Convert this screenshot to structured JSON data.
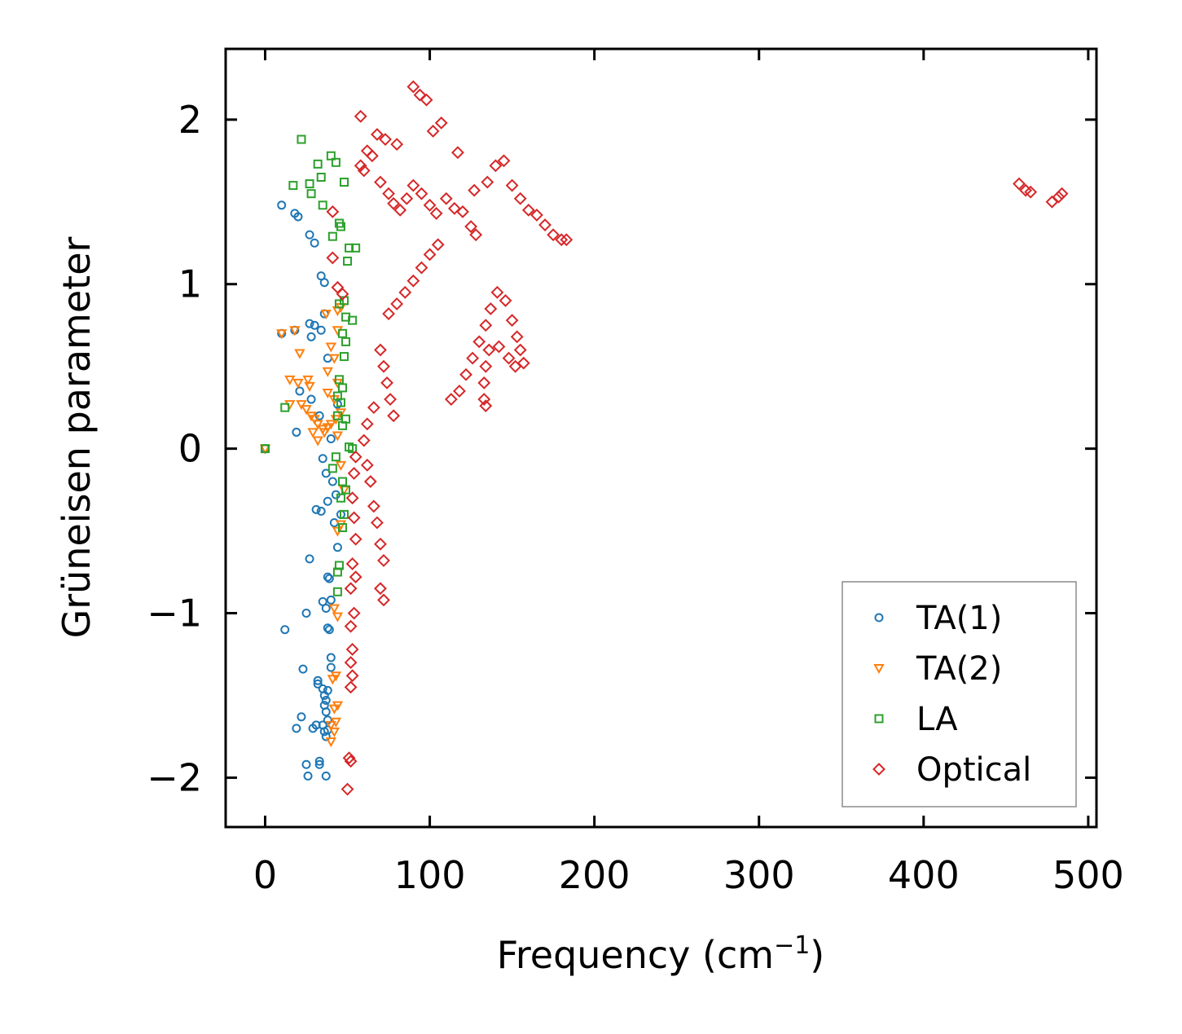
{
  "chart_data": {
    "type": "scatter",
    "title": "",
    "xlabel": "Frequency (cm",
    "xlabel_sup": "−1",
    "xlabel_close": ")",
    "ylabel": "Grüneisen parameter",
    "xlim": [
      -24,
      505
    ],
    "ylim": [
      -2.3,
      2.43
    ],
    "x_ticks": [
      0,
      100,
      200,
      300,
      400,
      500
    ],
    "x_tick_labels": [
      "0",
      "100",
      "200",
      "300",
      "400",
      "500"
    ],
    "y_ticks": [
      -2,
      -1,
      0,
      1,
      2
    ],
    "y_tick_labels": [
      "−2",
      "−1",
      "0",
      "1",
      "2"
    ],
    "grid": false,
    "legend_position": "bottom-right",
    "series": [
      {
        "name": "TA(1)",
        "marker": "circle",
        "color": "#1f77b4",
        "points": [
          [
            0,
            0
          ],
          [
            10,
            1.48
          ],
          [
            18,
            1.43
          ],
          [
            20,
            1.41
          ],
          [
            27,
            1.3
          ],
          [
            30,
            1.25
          ],
          [
            34,
            1.05
          ],
          [
            36,
            1.01
          ],
          [
            10,
            0.7
          ],
          [
            18,
            0.72
          ],
          [
            27,
            0.76
          ],
          [
            30,
            0.75
          ],
          [
            34,
            0.72
          ],
          [
            36,
            0.82
          ],
          [
            38,
            0.55
          ],
          [
            28,
            0.68
          ],
          [
            21,
            0.35
          ],
          [
            19,
            0.1
          ],
          [
            28,
            0.3
          ],
          [
            33,
            0.2
          ],
          [
            40,
            0.06
          ],
          [
            44,
            0.27
          ],
          [
            35,
            -0.06
          ],
          [
            37,
            -0.15
          ],
          [
            41,
            -0.2
          ],
          [
            43,
            -0.28
          ],
          [
            38,
            -0.32
          ],
          [
            31,
            -0.37
          ],
          [
            34,
            -0.38
          ],
          [
            42,
            -0.45
          ],
          [
            46,
            -0.4
          ],
          [
            27,
            -0.67
          ],
          [
            38,
            -0.78
          ],
          [
            39,
            -0.79
          ],
          [
            44,
            -0.6
          ],
          [
            25,
            -1.0
          ],
          [
            35,
            -0.93
          ],
          [
            37,
            -0.97
          ],
          [
            40,
            -0.92
          ],
          [
            12,
            -1.1
          ],
          [
            38,
            -1.09
          ],
          [
            39,
            -1.1
          ],
          [
            40,
            -1.27
          ],
          [
            40,
            -1.33
          ],
          [
            23,
            -1.34
          ],
          [
            32,
            -1.41
          ],
          [
            32,
            -1.43
          ],
          [
            35,
            -1.46
          ],
          [
            36,
            -1.5
          ],
          [
            38,
            -1.47
          ],
          [
            37,
            -1.53
          ],
          [
            36,
            -1.56
          ],
          [
            37,
            -1.6
          ],
          [
            38,
            -1.65
          ],
          [
            22,
            -1.63
          ],
          [
            19,
            -1.7
          ],
          [
            29,
            -1.7
          ],
          [
            31,
            -1.68
          ],
          [
            35,
            -1.68
          ],
          [
            36,
            -1.72
          ],
          [
            37,
            -1.75
          ],
          [
            38,
            -1.71
          ],
          [
            33,
            -1.9
          ],
          [
            33,
            -1.92
          ],
          [
            25,
            -1.92
          ],
          [
            26,
            -1.99
          ],
          [
            37,
            -1.99
          ]
        ]
      },
      {
        "name": "TA(2)",
        "marker": "triangle-down",
        "color": "#ff7f0e",
        "points": [
          [
            0,
            0
          ],
          [
            10,
            0.7
          ],
          [
            18,
            0.72
          ],
          [
            37,
            0.82
          ],
          [
            44,
            0.84
          ],
          [
            46,
            0.86
          ],
          [
            44,
            0.72
          ],
          [
            40,
            0.62
          ],
          [
            42,
            0.55
          ],
          [
            21,
            0.58
          ],
          [
            38,
            0.47
          ],
          [
            44,
            0.4
          ],
          [
            15,
            0.42
          ],
          [
            20,
            0.4
          ],
          [
            26,
            0.42
          ],
          [
            27,
            0.38
          ],
          [
            38,
            0.34
          ],
          [
            42,
            0.3
          ],
          [
            15,
            0.27
          ],
          [
            22,
            0.27
          ],
          [
            25,
            0.24
          ],
          [
            28,
            0.2
          ],
          [
            30,
            0.18
          ],
          [
            32,
            0.15
          ],
          [
            35,
            0.12
          ],
          [
            36,
            0.1
          ],
          [
            38,
            0.13
          ],
          [
            40,
            0.15
          ],
          [
            43,
            0.18
          ],
          [
            46,
            0.22
          ],
          [
            32,
            0.05
          ],
          [
            29,
            0.1
          ],
          [
            44,
            0.08
          ],
          [
            46,
            -0.1
          ],
          [
            48,
            -0.25
          ],
          [
            44,
            -0.5
          ],
          [
            46,
            -0.46
          ],
          [
            42,
            -0.97
          ],
          [
            44,
            -1.02
          ],
          [
            41,
            -1.4
          ],
          [
            43,
            -1.38
          ],
          [
            42,
            -1.58
          ],
          [
            44,
            -1.56
          ],
          [
            40,
            -1.68
          ],
          [
            42,
            -1.72
          ],
          [
            43,
            -1.66
          ],
          [
            40,
            -1.78
          ]
        ]
      },
      {
        "name": "LA",
        "marker": "square",
        "color": "#2ca02c",
        "points": [
          [
            0,
            0
          ],
          [
            22,
            1.88
          ],
          [
            17,
            1.6
          ],
          [
            27,
            1.61
          ],
          [
            32,
            1.73
          ],
          [
            40,
            1.78
          ],
          [
            43,
            1.74
          ],
          [
            34,
            1.65
          ],
          [
            28,
            1.55
          ],
          [
            35,
            1.48
          ],
          [
            48,
            1.62
          ],
          [
            45,
            1.37
          ],
          [
            46,
            1.35
          ],
          [
            41,
            1.29
          ],
          [
            51,
            1.22
          ],
          [
            55,
            1.22
          ],
          [
            50,
            1.14
          ],
          [
            45,
            0.88
          ],
          [
            48,
            0.9
          ],
          [
            49,
            0.8
          ],
          [
            53,
            0.78
          ],
          [
            47,
            0.7
          ],
          [
            49,
            0.65
          ],
          [
            48,
            0.56
          ],
          [
            45,
            0.42
          ],
          [
            47,
            0.37
          ],
          [
            44,
            0.32
          ],
          [
            46,
            0.28
          ],
          [
            12,
            0.25
          ],
          [
            44,
            0.2
          ],
          [
            49,
            0.18
          ],
          [
            47,
            0.14
          ],
          [
            51,
            0.01
          ],
          [
            53,
            0.0
          ],
          [
            43,
            -0.05
          ],
          [
            41,
            -0.12
          ],
          [
            47,
            -0.2
          ],
          [
            49,
            -0.25
          ],
          [
            46,
            -0.3
          ],
          [
            48,
            -0.4
          ],
          [
            47,
            -0.48
          ],
          [
            45,
            -0.71
          ],
          [
            44,
            -0.75
          ],
          [
            44,
            -0.87
          ]
        ]
      },
      {
        "name": "Optical",
        "marker": "diamond",
        "color": "#d62728",
        "points": [
          [
            58,
            2.02
          ],
          [
            68,
            1.91
          ],
          [
            73,
            1.88
          ],
          [
            80,
            1.85
          ],
          [
            90,
            2.2
          ],
          [
            94,
            2.15
          ],
          [
            98,
            2.12
          ],
          [
            102,
            1.93
          ],
          [
            107,
            1.98
          ],
          [
            117,
            1.8
          ],
          [
            127,
            1.57
          ],
          [
            41,
            1.44
          ],
          [
            41,
            1.16
          ],
          [
            44,
            0.98
          ],
          [
            47,
            0.94
          ],
          [
            58,
            1.72
          ],
          [
            60,
            1.69
          ],
          [
            62,
            1.81
          ],
          [
            65,
            1.78
          ],
          [
            70,
            1.62
          ],
          [
            75,
            1.55
          ],
          [
            78,
            1.49
          ],
          [
            82,
            1.45
          ],
          [
            86,
            1.52
          ],
          [
            90,
            1.6
          ],
          [
            95,
            1.55
          ],
          [
            100,
            1.48
          ],
          [
            104,
            1.43
          ],
          [
            110,
            1.52
          ],
          [
            115,
            1.46
          ],
          [
            120,
            1.44
          ],
          [
            125,
            1.35
          ],
          [
            128,
            1.3
          ],
          [
            135,
            1.62
          ],
          [
            140,
            1.72
          ],
          [
            145,
            1.75
          ],
          [
            150,
            1.6
          ],
          [
            155,
            1.52
          ],
          [
            160,
            1.45
          ],
          [
            165,
            1.42
          ],
          [
            170,
            1.36
          ],
          [
            175,
            1.3
          ],
          [
            180,
            1.27
          ],
          [
            183,
            1.27
          ],
          [
            105,
            1.24
          ],
          [
            100,
            1.18
          ],
          [
            95,
            1.1
          ],
          [
            90,
            1.02
          ],
          [
            85,
            0.95
          ],
          [
            80,
            0.88
          ],
          [
            75,
            0.82
          ],
          [
            70,
            0.6
          ],
          [
            72,
            0.5
          ],
          [
            74,
            0.4
          ],
          [
            76,
            0.3
          ],
          [
            78,
            0.2
          ],
          [
            66,
            0.25
          ],
          [
            62,
            0.15
          ],
          [
            60,
            0.05
          ],
          [
            62,
            -0.1
          ],
          [
            64,
            -0.2
          ],
          [
            66,
            -0.35
          ],
          [
            68,
            -0.45
          ],
          [
            70,
            -0.58
          ],
          [
            72,
            -0.68
          ],
          [
            70,
            -0.85
          ],
          [
            72,
            -0.92
          ],
          [
            55,
            -0.05
          ],
          [
            54,
            -0.15
          ],
          [
            53,
            -0.3
          ],
          [
            54,
            -0.42
          ],
          [
            55,
            -0.55
          ],
          [
            53,
            -0.7
          ],
          [
            55,
            -0.78
          ],
          [
            52,
            -0.85
          ],
          [
            54,
            -1.0
          ],
          [
            52,
            -1.08
          ],
          [
            53,
            -1.22
          ],
          [
            52,
            -1.3
          ],
          [
            53,
            -1.38
          ],
          [
            52,
            -1.45
          ],
          [
            51,
            -1.88
          ],
          [
            52,
            -1.9
          ],
          [
            50,
            -2.07
          ],
          [
            113,
            0.3
          ],
          [
            118,
            0.35
          ],
          [
            122,
            0.45
          ],
          [
            126,
            0.55
          ],
          [
            130,
            0.65
          ],
          [
            134,
            0.75
          ],
          [
            137,
            0.85
          ],
          [
            141,
            0.95
          ],
          [
            146,
            0.9
          ],
          [
            150,
            0.78
          ],
          [
            153,
            0.68
          ],
          [
            155,
            0.6
          ],
          [
            157,
            0.52
          ],
          [
            152,
            0.5
          ],
          [
            148,
            0.55
          ],
          [
            142,
            0.62
          ],
          [
            136,
            0.6
          ],
          [
            134,
            0.5
          ],
          [
            133,
            0.4
          ],
          [
            133,
            0.3
          ],
          [
            134,
            0.26
          ],
          [
            458,
            1.61
          ],
          [
            462,
            1.57
          ],
          [
            465,
            1.56
          ],
          [
            478,
            1.5
          ],
          [
            482,
            1.53
          ],
          [
            484,
            1.55
          ]
        ]
      }
    ]
  }
}
